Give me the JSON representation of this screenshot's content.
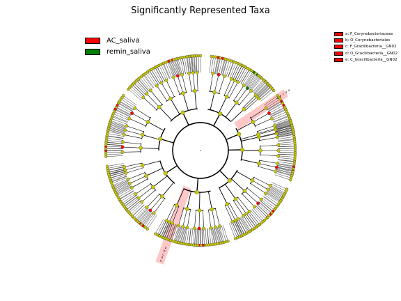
{
  "title": "Significantly Represented Taxa",
  "legend": [
    {
      "label": "AC_saliva",
      "color": "#ff0000"
    },
    {
      "label": "remin_saliva",
      "color": "#008000"
    }
  ],
  "taxa_key": [
    {
      "text": "a: F_Corynebacteriaceae",
      "color": "#ff0000"
    },
    {
      "text": "b: O_Corynebacteriales",
      "color": "#ff0000"
    },
    {
      "text": "c: F_Gracilibacteria__GN02",
      "color": "#ff0000"
    },
    {
      "text": "d: O_Gracilibacteria__GN02",
      "color": "#ff0000"
    },
    {
      "text": "e: C_Gracilibacteria__GN02",
      "color": "#ff0000"
    }
  ],
  "clade_markers": [
    "a",
    "b",
    "c",
    "d",
    "e"
  ],
  "colors": {
    "node": "#c8c800",
    "enriched_ac_saliva": "#ff0000",
    "enriched_remin_saliva": "#008000",
    "highlight": "#ff9999",
    "branch": "#000000"
  }
}
